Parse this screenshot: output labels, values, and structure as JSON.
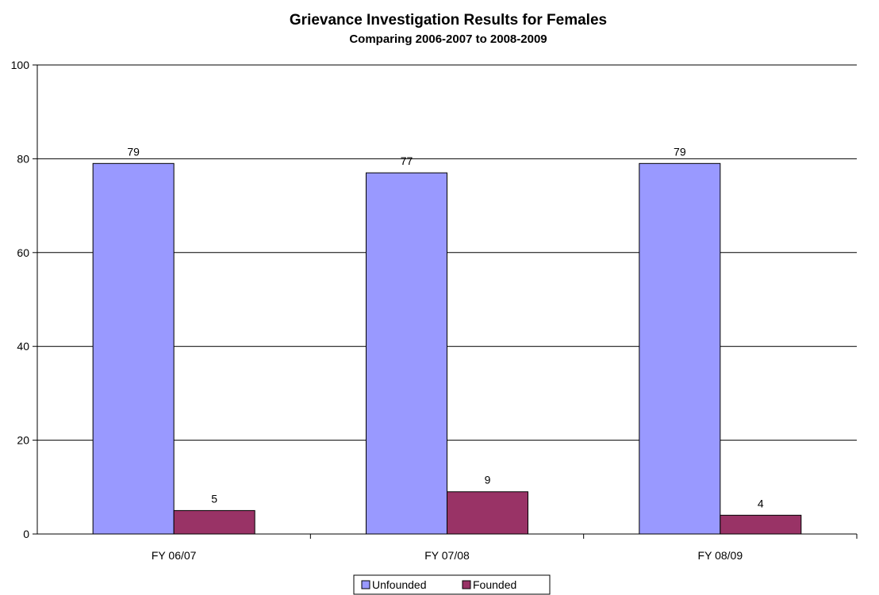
{
  "chart_data": {
    "type": "bar",
    "title": "Grievance Investigation Results for Females",
    "subtitle": "Comparing 2006-2007 to 2008-2009",
    "xlabel": "",
    "ylabel": "",
    "categories": [
      "FY 06/07",
      "FY 07/08",
      "FY 08/09"
    ],
    "series": [
      {
        "name": "Unfounded",
        "values": [
          79,
          77,
          79
        ],
        "color": "#9999ff"
      },
      {
        "name": "Founded",
        "values": [
          5,
          9,
          4
        ],
        "color": "#993366"
      }
    ],
    "ylim": [
      0,
      100
    ],
    "yticks": [
      0,
      20,
      40,
      60,
      80,
      100
    ],
    "grid": true,
    "legend": "bottom-center"
  }
}
